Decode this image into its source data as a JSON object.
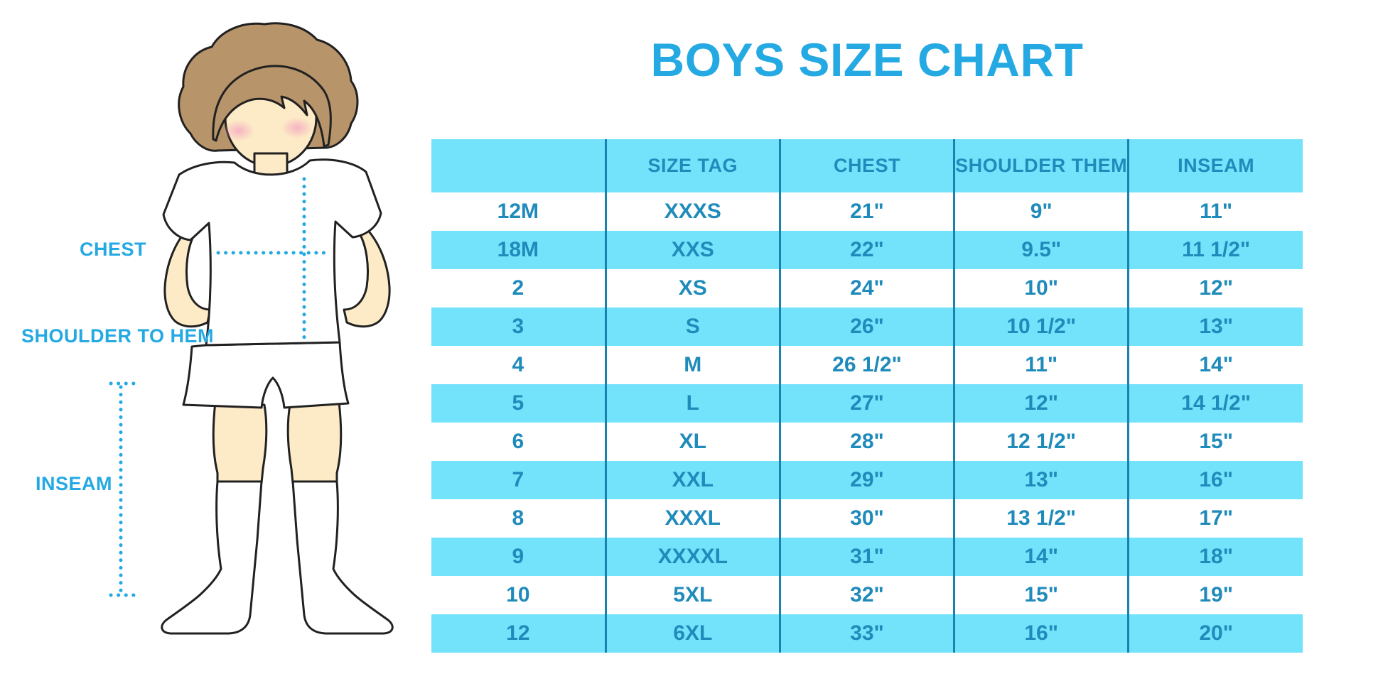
{
  "title": "BOYS SIZE CHART",
  "figure": {
    "description": "boy mannequin with measurement guides",
    "labels": {
      "chest": "CHEST",
      "shoulder_to_hem": "SHOULDER TO HEM",
      "inseam": "INSEAM"
    }
  },
  "chart_data": {
    "type": "table",
    "title": "BOYS SIZE CHART",
    "columns": [
      "",
      "SIZE TAG",
      "CHEST",
      "SHOULDER THEM",
      "INSEAM"
    ],
    "rows": [
      [
        "12M",
        "XXXS",
        "21\"",
        "9\"",
        "11\""
      ],
      [
        "18M",
        "XXS",
        "22\"",
        "9.5\"",
        "11 1/2\""
      ],
      [
        "2",
        "XS",
        "24\"",
        "10\"",
        "12\""
      ],
      [
        "3",
        "S",
        "26\"",
        "10 1/2\"",
        "13\""
      ],
      [
        "4",
        "M",
        "26 1/2\"",
        "11\"",
        "14\""
      ],
      [
        "5",
        "L",
        "27\"",
        "12\"",
        "14 1/2\""
      ],
      [
        "6",
        "XL",
        "28\"",
        "12 1/2\"",
        "15\""
      ],
      [
        "7",
        "XXL",
        "29\"",
        "13\"",
        "16\""
      ],
      [
        "8",
        "XXXL",
        "30\"",
        "13 1/2\"",
        "17\""
      ],
      [
        "9",
        "XXXXL",
        "31\"",
        "14\"",
        "18\""
      ],
      [
        "10",
        "5XL",
        "32\"",
        "15\"",
        "19\""
      ],
      [
        "12",
        "6XL",
        "33\"",
        "16\"",
        "20\""
      ]
    ],
    "layout": {
      "row_striping": "white / light-blue alternating, first data row white",
      "header_fill": "light-blue",
      "column_dividers": "vertical dark-blue lines, no horizontal rules"
    }
  },
  "colors": {
    "accent": "#24a9e2",
    "table_fill": "#73e2fb",
    "table_text": "#1f8bbb",
    "divider": "#1982ae",
    "outline": "#212121",
    "skin": "#fdeac6",
    "hair": "#b8946a",
    "blush": "#f5aec2"
  }
}
